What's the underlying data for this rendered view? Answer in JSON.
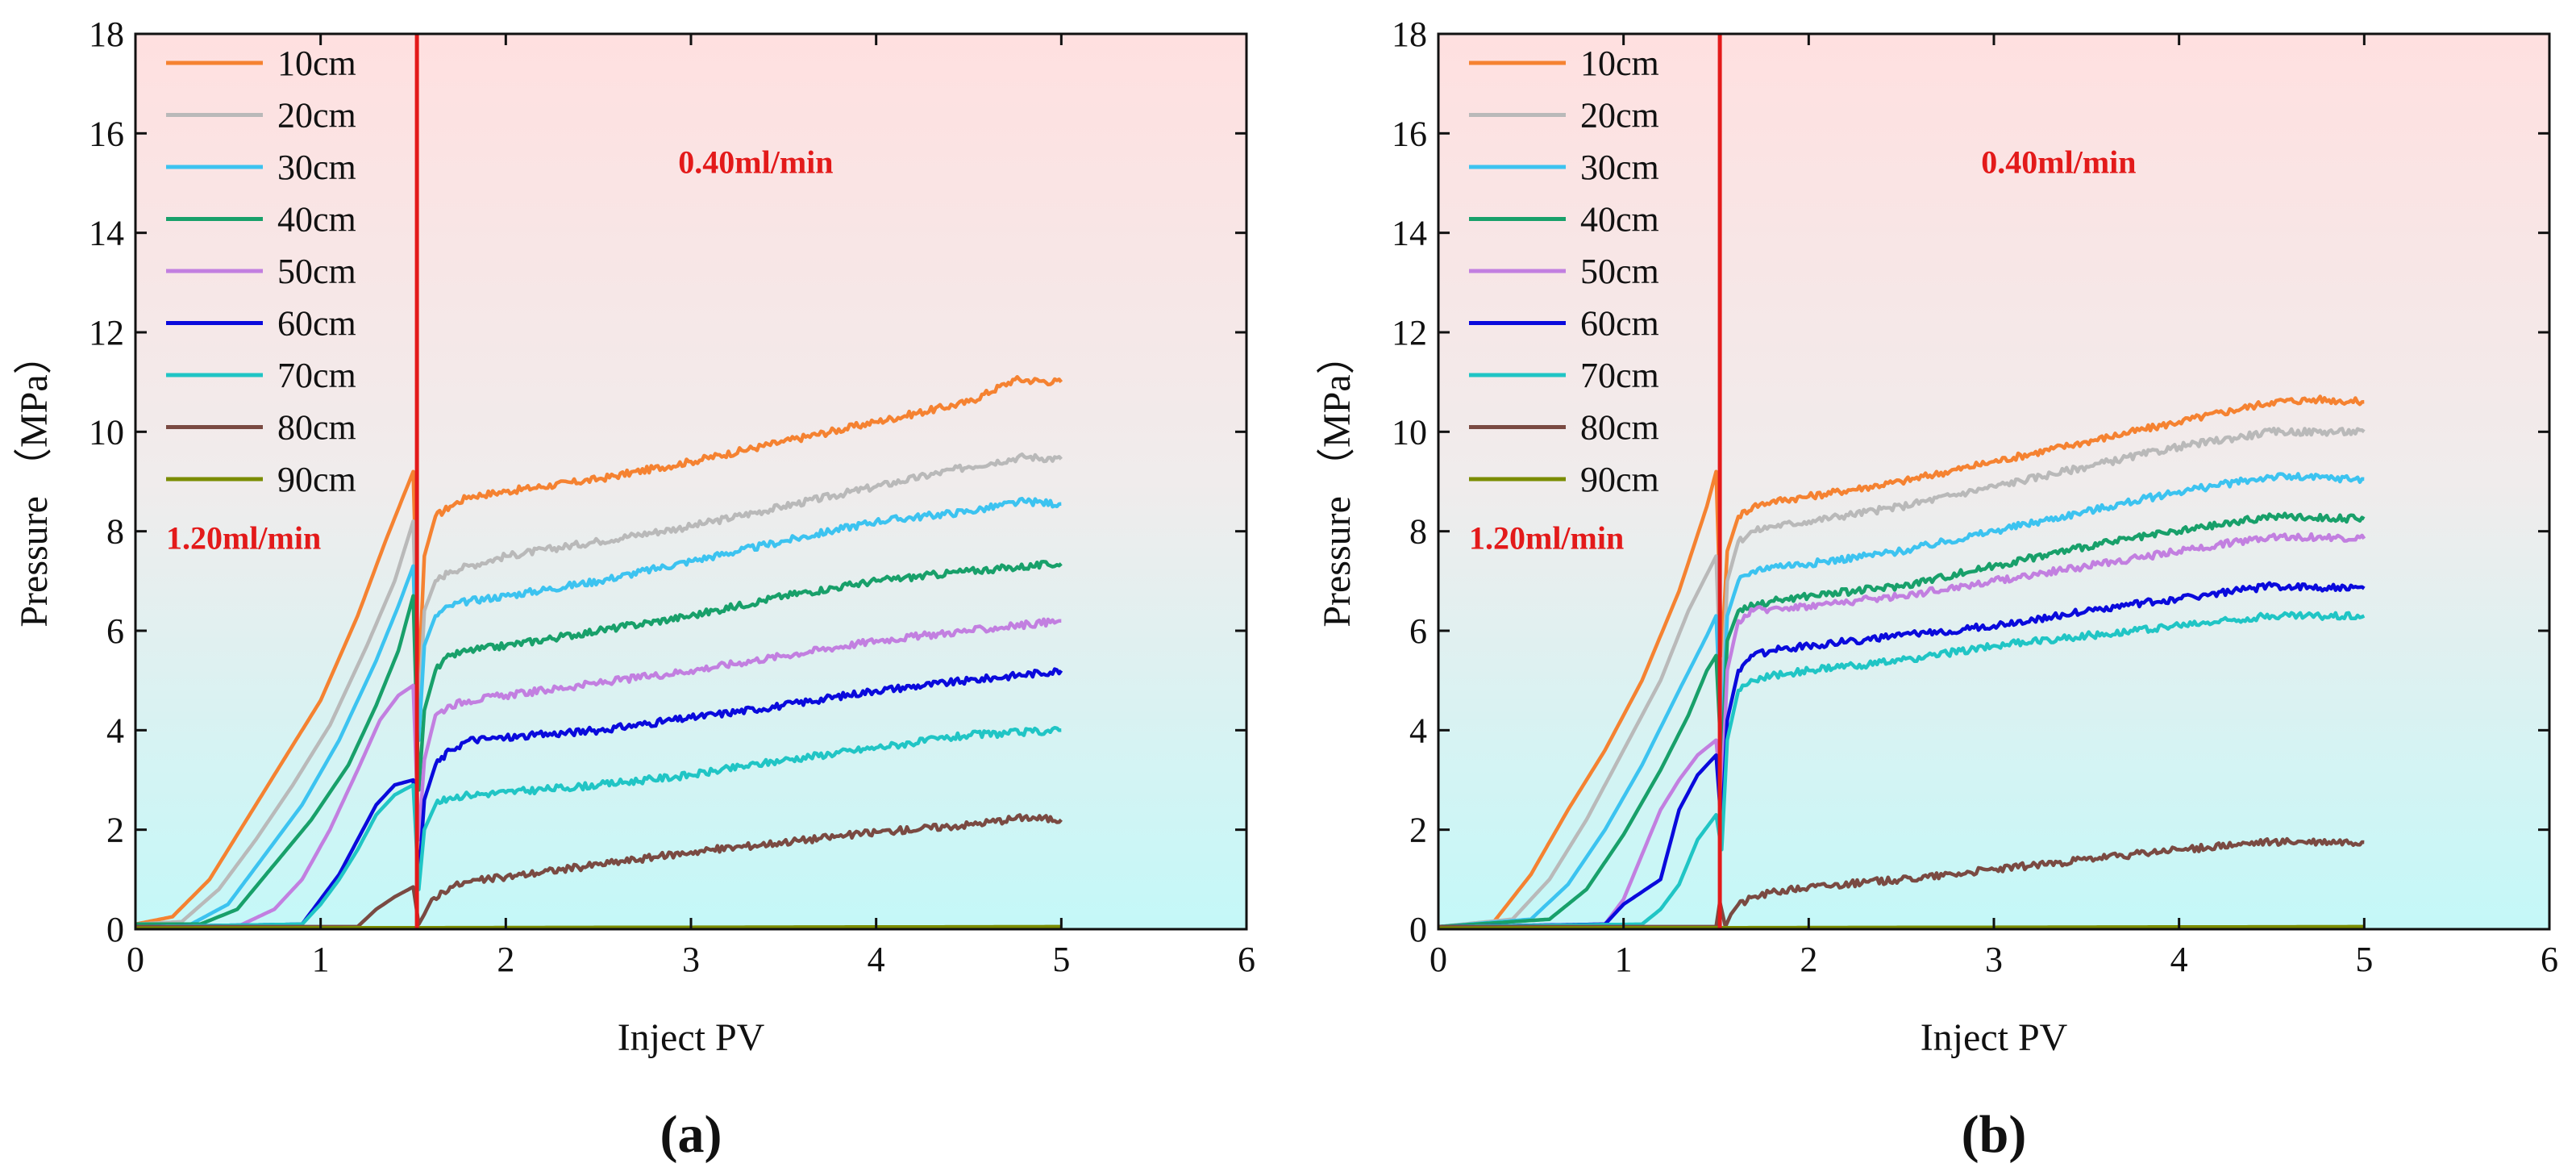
{
  "chart_data": [
    {
      "panel": "(a)",
      "type": "line",
      "xlabel": "Inject PV",
      "ylabel": "Pressure （MPa）",
      "xlim": [
        0,
        6
      ],
      "ylim": [
        0,
        18
      ],
      "xticks": [
        "0",
        "1",
        "2",
        "3",
        "4",
        "5",
        "6"
      ],
      "yticks": [
        "0",
        "2",
        "4",
        "6",
        "8",
        "10",
        "12",
        "14",
        "16",
        "18"
      ],
      "switch_x": 1.52,
      "annotations": {
        "low_rate": "1.20ml/min",
        "high_rate": "0.40ml/min"
      },
      "series": [
        {
          "name": "10cm",
          "color": "#f58231",
          "x": [
            0,
            0.2,
            0.4,
            0.6,
            0.8,
            1.0,
            1.2,
            1.35,
            1.5,
            1.53,
            1.56,
            1.62,
            1.7,
            1.8,
            2.0,
            2.5,
            3.0,
            3.5,
            4.0,
            4.5,
            4.75,
            5.0
          ],
          "y": [
            0.1,
            0.25,
            1.0,
            2.2,
            3.4,
            4.6,
            6.3,
            7.8,
            9.2,
            5.0,
            7.5,
            8.3,
            8.5,
            8.7,
            8.8,
            9.05,
            9.4,
            9.8,
            10.2,
            10.6,
            11.05,
            11.0
          ]
        },
        {
          "name": "20cm",
          "color": "#b9b9b9",
          "x": [
            0,
            0.25,
            0.45,
            0.65,
            0.85,
            1.05,
            1.25,
            1.4,
            1.5,
            1.53,
            1.56,
            1.62,
            1.7,
            1.8,
            2.0,
            2.5,
            3.0,
            3.5,
            4.0,
            4.5,
            4.8,
            5.0
          ],
          "y": [
            0.1,
            0.15,
            0.8,
            1.8,
            2.9,
            4.1,
            5.7,
            7.0,
            8.2,
            4.2,
            6.4,
            7.0,
            7.2,
            7.3,
            7.5,
            7.8,
            8.1,
            8.5,
            8.9,
            9.3,
            9.5,
            9.45
          ]
        },
        {
          "name": "30cm",
          "color": "#3cc3f0",
          "x": [
            0,
            0.3,
            0.5,
            0.7,
            0.9,
            1.1,
            1.3,
            1.42,
            1.5,
            1.53,
            1.56,
            1.62,
            1.7,
            1.8,
            2.0,
            2.5,
            3.0,
            3.5,
            4.0,
            4.5,
            4.8,
            5.0
          ],
          "y": [
            0.1,
            0.1,
            0.5,
            1.5,
            2.5,
            3.8,
            5.4,
            6.5,
            7.3,
            3.8,
            5.7,
            6.3,
            6.5,
            6.6,
            6.7,
            7.0,
            7.4,
            7.8,
            8.2,
            8.4,
            8.6,
            8.55
          ]
        },
        {
          "name": "40cm",
          "color": "#18a06a",
          "x": [
            0,
            0.35,
            0.55,
            0.75,
            0.95,
            1.15,
            1.3,
            1.42,
            1.5,
            1.53,
            1.56,
            1.62,
            1.7,
            1.8,
            2.0,
            2.5,
            3.0,
            3.5,
            4.0,
            4.5,
            5.0
          ],
          "y": [
            0.1,
            0.1,
            0.4,
            1.3,
            2.2,
            3.3,
            4.5,
            5.6,
            6.7,
            2.8,
            4.4,
            5.2,
            5.5,
            5.6,
            5.7,
            6.0,
            6.3,
            6.7,
            7.0,
            7.2,
            7.35
          ]
        },
        {
          "name": "50cm",
          "color": "#c27fe0",
          "x": [
            0,
            0.55,
            0.75,
            0.9,
            1.05,
            1.2,
            1.32,
            1.42,
            1.5,
            1.53,
            1.56,
            1.62,
            1.7,
            1.8,
            2.0,
            2.5,
            3.0,
            3.5,
            4.0,
            4.5,
            5.0
          ],
          "y": [
            0.05,
            0.05,
            0.4,
            1.0,
            2.0,
            3.2,
            4.2,
            4.7,
            4.9,
            1.8,
            3.4,
            4.3,
            4.5,
            4.6,
            4.7,
            4.95,
            5.2,
            5.5,
            5.8,
            6.0,
            6.2
          ]
        },
        {
          "name": "60cm",
          "color": "#0a0adc",
          "x": [
            0,
            0.9,
            1.0,
            1.1,
            1.2,
            1.3,
            1.4,
            1.5,
            1.53,
            1.56,
            1.62,
            1.7,
            1.8,
            2.0,
            2.5,
            3.0,
            3.5,
            4.0,
            4.5,
            5.0
          ],
          "y": [
            0.05,
            0.1,
            0.6,
            1.1,
            1.8,
            2.5,
            2.9,
            3.0,
            1.0,
            2.6,
            3.3,
            3.6,
            3.8,
            3.85,
            4.0,
            4.25,
            4.5,
            4.8,
            5.0,
            5.2
          ]
        },
        {
          "name": "70cm",
          "color": "#20c5c5",
          "x": [
            0,
            0.9,
            1.0,
            1.1,
            1.2,
            1.3,
            1.4,
            1.5,
            1.53,
            1.56,
            1.62,
            1.7,
            1.8,
            2.0,
            2.5,
            3.0,
            3.5,
            4.0,
            4.5,
            5.0
          ],
          "y": [
            0.05,
            0.1,
            0.5,
            1.0,
            1.6,
            2.3,
            2.7,
            2.9,
            0.8,
            2.0,
            2.5,
            2.65,
            2.7,
            2.75,
            2.9,
            3.1,
            3.4,
            3.65,
            3.9,
            4.0
          ]
        },
        {
          "name": "80cm",
          "color": "#7a4a42",
          "x": [
            0,
            1.2,
            1.3,
            1.4,
            1.5,
            1.53,
            1.56,
            1.6,
            1.7,
            1.8,
            2.0,
            2.5,
            3.0,
            3.5,
            4.0,
            4.5,
            4.8,
            5.0
          ],
          "y": [
            0.05,
            0.05,
            0.4,
            0.65,
            0.85,
            0.1,
            0.3,
            0.6,
            0.85,
            0.95,
            1.05,
            1.3,
            1.55,
            1.75,
            1.95,
            2.1,
            2.25,
            2.2
          ]
        },
        {
          "name": "90cm",
          "color": "#7a8c00",
          "x": [
            0,
            5.0
          ],
          "y": [
            0.02,
            0.05
          ]
        }
      ]
    },
    {
      "panel": "(b)",
      "type": "line",
      "xlabel": "Inject PV",
      "ylabel": "Pressure （MPa）",
      "xlim": [
        0,
        6
      ],
      "ylim": [
        0,
        18
      ],
      "xticks": [
        "0",
        "1",
        "2",
        "3",
        "4",
        "5",
        "6"
      ],
      "yticks": [
        "0",
        "2",
        "4",
        "6",
        "8",
        "10",
        "12",
        "14",
        "16",
        "18"
      ],
      "switch_x": 1.52,
      "annotations": {
        "low_rate": "1.20ml/min",
        "high_rate": "0.40ml/min"
      },
      "series": [
        {
          "name": "10cm",
          "color": "#f58231",
          "x": [
            0,
            0.3,
            0.5,
            0.7,
            0.9,
            1.1,
            1.3,
            1.45,
            1.5,
            1.53,
            1.56,
            1.62,
            1.7,
            1.8,
            2.0,
            2.5,
            3.0,
            3.5,
            4.0,
            4.5,
            4.75,
            5.0
          ],
          "y": [
            0.05,
            0.15,
            1.1,
            2.4,
            3.6,
            5.0,
            6.8,
            8.5,
            9.2,
            5.5,
            7.6,
            8.3,
            8.5,
            8.6,
            8.7,
            9.0,
            9.4,
            9.8,
            10.2,
            10.6,
            10.65,
            10.6
          ]
        },
        {
          "name": "20cm",
          "color": "#b9b9b9",
          "x": [
            0,
            0.4,
            0.6,
            0.8,
            1.0,
            1.2,
            1.35,
            1.5,
            1.53,
            1.56,
            1.62,
            1.7,
            1.8,
            2.0,
            2.5,
            3.0,
            3.5,
            4.0,
            4.5,
            5.0
          ],
          "y": [
            0.05,
            0.2,
            1.0,
            2.2,
            3.6,
            5.0,
            6.4,
            7.5,
            4.5,
            7.0,
            7.8,
            8.0,
            8.1,
            8.2,
            8.5,
            8.9,
            9.3,
            9.7,
            10.0,
            10.0
          ]
        },
        {
          "name": "30cm",
          "color": "#3cc3f0",
          "x": [
            0,
            0.5,
            0.7,
            0.9,
            1.1,
            1.3,
            1.45,
            1.5,
            1.53,
            1.56,
            1.62,
            1.7,
            1.8,
            2.0,
            2.5,
            3.0,
            3.5,
            4.0,
            4.5,
            5.0
          ],
          "y": [
            0.05,
            0.2,
            0.9,
            2.0,
            3.3,
            4.8,
            5.9,
            6.3,
            3.8,
            6.3,
            7.0,
            7.2,
            7.3,
            7.35,
            7.6,
            8.0,
            8.4,
            8.8,
            9.1,
            9.05
          ]
        },
        {
          "name": "40cm",
          "color": "#18a06a",
          "x": [
            0,
            0.6,
            0.8,
            1.0,
            1.2,
            1.35,
            1.45,
            1.5,
            1.53,
            1.56,
            1.62,
            1.7,
            1.8,
            2.0,
            2.5,
            3.0,
            3.5,
            4.0,
            4.5,
            5.0
          ],
          "y": [
            0.05,
            0.2,
            0.8,
            1.9,
            3.2,
            4.3,
            5.2,
            5.5,
            3.3,
            5.8,
            6.4,
            6.5,
            6.6,
            6.7,
            6.9,
            7.3,
            7.7,
            8.0,
            8.3,
            8.25
          ]
        },
        {
          "name": "50cm",
          "color": "#c27fe0",
          "x": [
            0,
            0.9,
            1.0,
            1.1,
            1.2,
            1.3,
            1.4,
            1.5,
            1.53,
            1.56,
            1.62,
            1.7,
            1.8,
            2.0,
            2.5,
            3.0,
            3.5,
            4.0,
            4.5,
            5.0
          ],
          "y": [
            0.05,
            0.1,
            0.6,
            1.5,
            2.4,
            3.0,
            3.5,
            3.8,
            2.6,
            5.2,
            6.2,
            6.4,
            6.45,
            6.5,
            6.7,
            7.0,
            7.3,
            7.6,
            7.9,
            7.85
          ]
        },
        {
          "name": "60cm",
          "color": "#0a0adc",
          "x": [
            0,
            0.9,
            1.0,
            1.1,
            1.2,
            1.3,
            1.4,
            1.5,
            1.53,
            1.56,
            1.62,
            1.7,
            1.8,
            2.0,
            2.5,
            3.0,
            3.5,
            4.0,
            4.5,
            5.0
          ],
          "y": [
            0.05,
            0.1,
            0.5,
            0.75,
            1.0,
            2.4,
            3.1,
            3.5,
            2.0,
            4.2,
            5.2,
            5.5,
            5.6,
            5.7,
            5.9,
            6.1,
            6.4,
            6.65,
            6.9,
            6.85
          ]
        },
        {
          "name": "70cm",
          "color": "#20c5c5",
          "x": [
            0,
            1.1,
            1.2,
            1.3,
            1.4,
            1.5,
            1.53,
            1.56,
            1.62,
            1.7,
            1.8,
            2.0,
            2.5,
            3.0,
            3.5,
            4.0,
            4.5,
            5.0
          ],
          "y": [
            0.05,
            0.1,
            0.4,
            0.9,
            1.8,
            2.3,
            1.6,
            3.8,
            4.8,
            5.0,
            5.1,
            5.2,
            5.4,
            5.7,
            5.9,
            6.1,
            6.3,
            6.3
          ]
        },
        {
          "name": "80cm",
          "color": "#7a4a42",
          "x": [
            0,
            1.5,
            1.52,
            1.55,
            1.58,
            1.62,
            1.7,
            1.8,
            2.0,
            2.5,
            3.0,
            3.5,
            4.0,
            4.5,
            5.0
          ],
          "y": [
            0.05,
            0.05,
            0.55,
            0.05,
            0.3,
            0.5,
            0.65,
            0.75,
            0.85,
            1.0,
            1.2,
            1.4,
            1.6,
            1.75,
            1.75
          ]
        },
        {
          "name": "90cm",
          "color": "#7a8c00",
          "x": [
            0,
            5.0
          ],
          "y": [
            0.02,
            0.05
          ]
        }
      ]
    }
  ]
}
